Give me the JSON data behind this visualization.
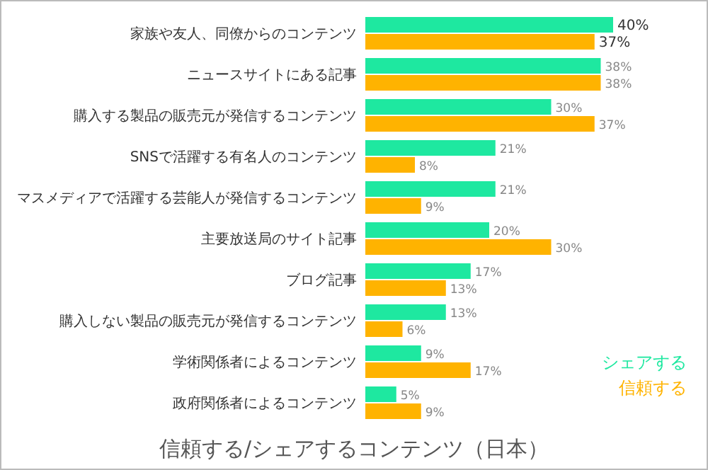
{
  "chart_data": {
    "type": "bar",
    "orientation": "horizontal",
    "title": "信頼する/シェアするコンテンツ（日本）",
    "categories": [
      "家族や友人、同僚からのコンテンツ",
      "ニュースサイトにある記事",
      "購入する製品の販売元が発信するコンテンツ",
      "SNSで活躍する有名人のコンテンツ",
      "マスメディアで活躍する芸能人が発信するコンテンツ",
      "主要放送局のサイト記事",
      "ブログ記事",
      "購入しない製品の販売元が発信するコンテンツ",
      "学術関係者によるコンテンツ",
      "政府関係者によるコンテンツ"
    ],
    "series": [
      {
        "name": "シェアする",
        "color": "#1ee8a0",
        "values": [
          40,
          38,
          30,
          21,
          21,
          20,
          17,
          13,
          9,
          5
        ],
        "value_labels": [
          "40%",
          "38%",
          "30%",
          "21%",
          "21%",
          "20%",
          "17%",
          "13%",
          "9%",
          "5%"
        ]
      },
      {
        "name": "信頼する",
        "color": "#ffb300",
        "values": [
          37,
          38,
          37,
          8,
          9,
          30,
          13,
          6,
          17,
          9
        ],
        "value_labels": [
          "37%",
          "38%",
          "37%",
          "8%",
          "9%",
          "30%",
          "13%",
          "6%",
          "17%",
          "9%"
        ]
      }
    ],
    "legend": "bottom right"
  }
}
